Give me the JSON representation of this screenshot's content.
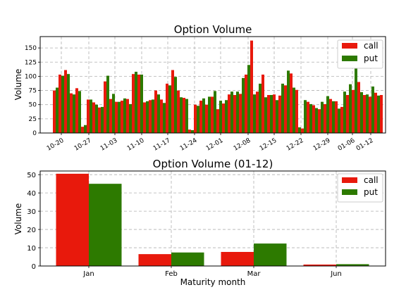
{
  "colors": {
    "call": "#e8190c",
    "put": "#2d7a00",
    "grid": "#b0b0b0"
  },
  "chart_data": [
    {
      "type": "bar",
      "title": "Option Volume",
      "xlabel": "",
      "ylabel": "Volume",
      "ylim": [
        0,
        170
      ],
      "yticks": [
        0,
        25,
        50,
        75,
        100,
        125,
        150
      ],
      "grid": true,
      "legend_position": "top-right",
      "xtick_labels": [
        "10-20",
        "10-27",
        "11-03",
        "11-10",
        "11-17",
        "11-24",
        "12-01",
        "12-08",
        "12-15",
        "12-22",
        "12-29",
        "01-06",
        "01-12"
      ],
      "series": [
        {
          "name": "call",
          "values": [
            75,
            103,
            111,
            70,
            79,
            11,
            59,
            54,
            45,
            91,
            60,
            55,
            57,
            60,
            104,
            103,
            54,
            58,
            75,
            59,
            87,
            111,
            75,
            62,
            6,
            50,
            57,
            50,
            64,
            42,
            52,
            68,
            67,
            69,
            103,
            163,
            73,
            103,
            67,
            68,
            66,
            84,
            105,
            76,
            8,
            55,
            49,
            42,
            51,
            60,
            56,
            46,
            67,
            76,
            90,
            67,
            64,
            71,
            67
          ]
        },
        {
          "name": "put",
          "values": [
            80,
            101,
            104,
            68,
            74,
            14,
            59,
            50,
            46,
            101,
            69,
            55,
            61,
            51,
            108,
            103,
            56,
            59,
            68,
            53,
            84,
            99,
            63,
            60,
            5,
            48,
            61,
            64,
            74,
            57,
            58,
            73,
            73,
            97,
            120,
            68,
            87,
            63,
            67,
            58,
            87,
            110,
            80,
            10,
            58,
            51,
            44,
            55,
            65,
            56,
            43,
            73,
            86,
            114,
            72,
            68,
            82,
            66,
            0
          ]
        }
      ]
    },
    {
      "type": "bar",
      "title": "Option Volume (01-12)",
      "xlabel": "Maturity month",
      "ylabel": "Volume",
      "ylim": [
        0,
        52
      ],
      "yticks": [
        0,
        10,
        20,
        30,
        40,
        50
      ],
      "grid": true,
      "legend_position": "top-right",
      "categories": [
        "Jan",
        "Feb",
        "Mar",
        "Jun"
      ],
      "series": [
        {
          "name": "call",
          "values": [
            50.5,
            6.5,
            7.7,
            0.8
          ]
        },
        {
          "name": "put",
          "values": [
            45,
            7.4,
            12.3,
            1.0
          ]
        }
      ]
    }
  ]
}
